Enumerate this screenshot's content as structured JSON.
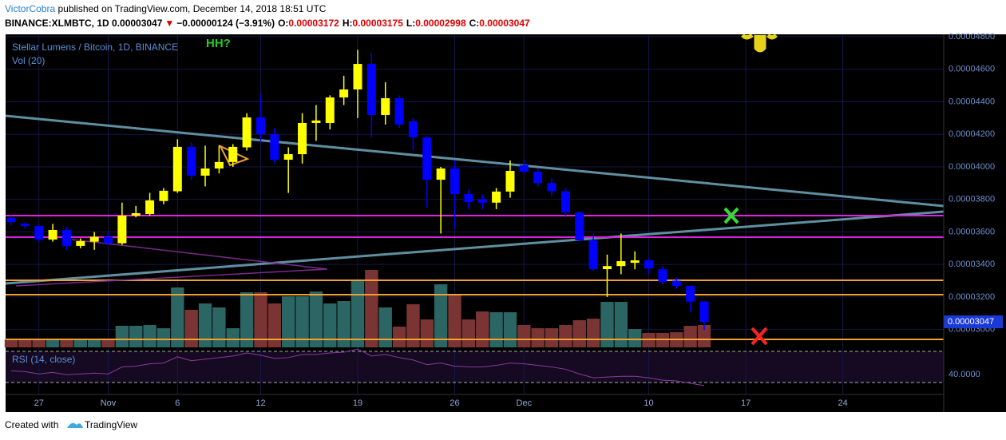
{
  "header": {
    "author": "VictorCobra",
    "published": " published on TradingView.com, December 14, 2018 18:51 UTC",
    "symbol": "BINANCE:XLMBTC, 1D",
    "last": " 0.00003047",
    "arrow": "▼",
    "change": "−0.00000124 (−3.91%)",
    "o": "O:",
    "h": "H:",
    "l": "L:",
    "c": "C:"
  },
  "chart_data": {
    "type": "candlestick",
    "title": "Stellar Lumens / Bitcoin, 1D, BINANCE",
    "annotation": "HH?",
    "categories": [
      null,
      null,
      "27",
      null,
      null,
      null,
      null,
      "Nov",
      null,
      null,
      null,
      null,
      "6",
      null,
      null,
      null,
      null,
      null,
      "12",
      null,
      null,
      null,
      null,
      null,
      null,
      "19",
      null,
      null,
      null,
      null,
      null,
      null,
      "26",
      null,
      null,
      null,
      null,
      "Dec",
      null,
      null,
      null,
      null,
      null,
      null,
      null,
      null,
      "10",
      null,
      null,
      null,
      null,
      null,
      null,
      "17",
      null,
      null,
      null,
      null,
      null,
      null,
      "24",
      null,
      null,
      null,
      null,
      null,
      null,
      null
    ],
    "open": [
      3.686e-05,
      3.65e-05,
      3.636e-05,
      3.553e-05,
      3.612e-05,
      3.514e-05,
      3.54e-05,
      3.57e-05,
      3.53e-05,
      3.7e-05,
      3.71e-05,
      3.79e-05,
      3.85e-05,
      4.123e-05,
      3.946e-05,
      3.99e-05,
      4.03e-05,
      4.12e-05,
      4.304e-05,
      4.201e-05,
      4.044e-05,
      4.078e-05,
      4.27e-05,
      4.27e-05,
      4.427e-05,
      4.476e-05,
      4.633e-05,
      4.319e-05,
      4.422e-05,
      4.28e-05,
      4.18e-05,
      3.921e-05,
      3.99e-05,
      3.833e-05,
      3.8e-05,
      3.78e-05,
      3.848e-05,
      4.01e-05,
      3.97e-05,
      3.9e-05,
      3.85e-05,
      3.72e-05,
      3.548e-05,
      3.371e-05,
      3.39e-05,
      3.41e-05,
      3.425e-05,
      3.37e-05,
      3.3e-05,
      3.268e-05,
      3.172e-05,
      null,
      null,
      null,
      null,
      null,
      null,
      null,
      null,
      null,
      null,
      null,
      null,
      null,
      null,
      null,
      null,
      null
    ],
    "high": [
      3.7e-05,
      3.66e-05,
      3.65e-05,
      3.65e-05,
      3.63e-05,
      3.56e-05,
      3.6e-05,
      3.6e-05,
      3.78e-05,
      3.76e-05,
      3.84e-05,
      3.87e-05,
      4.17e-05,
      4.15e-05,
      4.13e-05,
      4.13e-05,
      4.14e-05,
      4.33e-05,
      4.45e-05,
      4.24e-05,
      4.12e-05,
      4.33e-05,
      4.38e-05,
      4.44e-05,
      4.56e-05,
      4.72e-05,
      4.7e-05,
      4.52e-05,
      4.44e-05,
      4.3e-05,
      4.19e-05,
      4e-05,
      4.04e-05,
      3.86e-05,
      3.83e-05,
      3.87e-05,
      4.04e-05,
      4.04e-05,
      3.99e-05,
      3.93e-05,
      3.87e-05,
      3.73e-05,
      3.59e-05,
      3.46e-05,
      3.59e-05,
      3.48e-05,
      3.44e-05,
      3.39e-05,
      3.32e-05,
      3.27e-05,
      3.175e-05,
      null,
      null,
      null,
      null,
      null,
      null,
      null,
      null,
      null,
      null,
      null,
      null,
      null,
      null,
      null,
      null,
      null
    ],
    "low": [
      3.64e-05,
      3.62e-05,
      3.54e-05,
      3.54e-05,
      3.49e-05,
      3.5e-05,
      3.49e-05,
      3.52e-05,
      3.52e-05,
      3.69e-05,
      3.7e-05,
      3.77e-05,
      3.84e-05,
      3.92e-05,
      3.88e-05,
      3.96e-05,
      4e-05,
      4.1e-05,
      4.15e-05,
      4.02e-05,
      3.84e-05,
      4.02e-05,
      4.16e-05,
      4.23e-05,
      4.38e-05,
      4.3e-05,
      4.18e-05,
      4.26e-05,
      4.24e-05,
      4.1e-05,
      3.75e-05,
      3.59e-05,
      3.62e-05,
      3.74e-05,
      3.74e-05,
      3.74e-05,
      3.81e-05,
      3.96e-05,
      3.88e-05,
      3.82e-05,
      3.7e-05,
      3.54e-05,
      3.36e-05,
      3.2e-05,
      3.34e-05,
      3.37e-05,
      3.34e-05,
      3.28e-05,
      3.25e-05,
      3.11e-05,
      2.998e-05,
      null,
      null,
      null,
      null,
      null,
      null,
      null,
      null,
      null,
      null,
      null,
      null,
      null,
      null,
      null,
      null,
      null
    ],
    "close": [
      3.66e-05,
      3.636e-05,
      3.553e-05,
      3.612e-05,
      3.514e-05,
      3.543e-05,
      3.57e-05,
      3.53e-05,
      3.7e-05,
      3.715e-05,
      3.794e-05,
      3.853e-05,
      4.123e-05,
      3.946e-05,
      3.99e-05,
      4.03e-05,
      4.123e-05,
      4.304e-05,
      4.201e-05,
      4.044e-05,
      4.078e-05,
      4.27e-05,
      4.285e-05,
      4.427e-05,
      4.476e-05,
      4.633e-05,
      4.319e-05,
      4.422e-05,
      4.26e-05,
      4.182e-05,
      3.921e-05,
      3.99e-05,
      3.833e-05,
      3.784e-05,
      3.78e-05,
      3.848e-05,
      3.975e-05,
      3.97e-05,
      3.9e-05,
      3.85e-05,
      3.72e-05,
      3.548e-05,
      3.371e-05,
      3.39e-05,
      3.42e-05,
      3.425e-05,
      3.375e-05,
      3.293e-05,
      3.268e-05,
      3.172e-05,
      3.047e-05,
      null,
      null,
      null,
      null,
      null,
      null,
      null,
      null,
      null,
      null,
      null,
      null,
      null,
      null,
      null,
      null,
      null
    ],
    "up_color": "#ffff00",
    "down_color": "#0000ff",
    "ylim": [
      2.89e-05,
      4.81e-05
    ],
    "yticks": [
      {
        "value": 3e-05,
        "label": "0.00003000"
      },
      {
        "value": 3.2e-05,
        "label": "0.00003200"
      },
      {
        "value": 3.4e-05,
        "label": "0.00003400"
      },
      {
        "value": 3.6e-05,
        "label": "0.00003600"
      },
      {
        "value": 3.8e-05,
        "label": "0.00003800"
      },
      {
        "value": 4e-05,
        "label": "0.00004000"
      },
      {
        "value": 4.2e-05,
        "label": "0.00004200"
      },
      {
        "value": 4.4e-05,
        "label": "0.00004400"
      },
      {
        "value": 4.6e-05,
        "label": "0.00004600"
      },
      {
        "value": 4.8e-05,
        "label": "0.00004800"
      }
    ],
    "grid": true,
    "volume": {
      "title": "Vol (20)",
      "values": [
        10,
        10,
        10,
        10,
        10,
        10,
        10,
        10,
        27,
        27,
        28,
        24,
        75,
        47,
        55,
        50,
        24,
        69,
        69,
        55,
        64,
        64,
        70,
        55,
        58,
        84,
        97,
        50,
        26,
        54,
        35,
        79,
        65,
        35,
        45,
        44,
        44,
        28,
        24,
        24,
        28,
        34,
        36,
        57,
        57,
        23,
        18,
        18,
        19,
        27,
        28,
        null,
        null,
        null,
        null,
        null,
        null,
        null,
        null,
        null,
        null,
        null,
        null,
        null,
        null,
        null,
        null,
        null
      ],
      "ylim": [
        0,
        391
      ],
      "up_color": "#2b6664",
      "down_color": "#7a3434"
    },
    "rsi": {
      "title": "RSI (14, close)",
      "color": "#8a3a9a",
      "values": [
        45,
        44,
        41,
        43,
        40,
        41,
        42,
        41,
        50,
        51,
        54,
        55,
        63,
        58,
        60,
        62,
        64,
        68,
        65,
        61,
        62,
        66,
        66,
        68,
        69,
        73,
        64,
        66,
        62,
        59,
        53,
        55,
        51,
        50,
        50,
        52,
        55,
        54,
        52,
        50,
        47,
        41,
        36,
        37,
        38,
        38,
        36,
        33,
        32,
        29,
        26,
        null,
        null,
        null,
        null,
        null,
        null,
        null,
        null,
        null,
        null,
        null,
        null,
        null,
        null,
        null,
        null,
        null
      ],
      "ylim": [
        18.7,
        73.1
      ],
      "levels": [
        30,
        70
      ],
      "yticks": [
        {
          "value": 40,
          "label": "40.0000"
        }
      ]
    }
  },
  "footer": {
    "created": "Created with",
    "brand": "TradingView"
  }
}
